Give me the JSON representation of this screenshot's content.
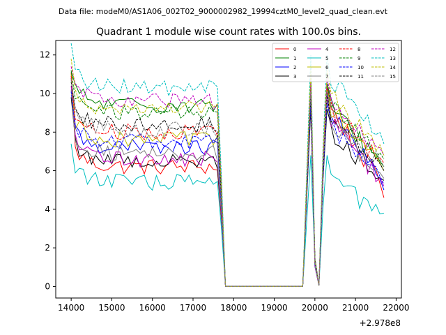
{
  "header": {
    "data_file": "Data file: modeM0/AS1A06_002T02_9000002982_19994cztM0_level2_quad_clean.evt"
  },
  "chart_data": {
    "type": "line",
    "title": "Quadrant 1 module wise count rates with 100.0s bins.",
    "xlabel": "",
    "ylabel": "",
    "x_offset_label": "+2.978e8",
    "xlim": [
      13620,
      22130
    ],
    "ylim": [
      -0.6,
      12.75
    ],
    "xticks": [
      14000,
      15000,
      16000,
      17000,
      18000,
      19000,
      20000,
      21000,
      22000
    ],
    "yticks": [
      0,
      2,
      4,
      6,
      8,
      10,
      12
    ],
    "legend_position": "top-right",
    "x_start": 14000,
    "x_step": 100,
    "x_end": 21700,
    "gap": {
      "drop_start": 17700,
      "zero_from": 17800,
      "zero_to": 19700
    },
    "series": [
      {
        "name": "0",
        "color": "#ff0000",
        "dash": false,
        "base": 6.2,
        "peak": 10.5,
        "end": 4.6
      },
      {
        "name": "1",
        "color": "#008000",
        "dash": false,
        "base": 9.4,
        "peak": 10.5,
        "end": 6.2
      },
      {
        "name": "2",
        "color": "#0000ff",
        "dash": false,
        "base": 7.2,
        "peak": 10.2,
        "end": 5.0
      },
      {
        "name": "3",
        "color": "#000000",
        "dash": false,
        "base": 6.5,
        "peak": 9.2,
        "end": 5.5
      },
      {
        "name": "4",
        "color": "#bf00bf",
        "dash": false,
        "base": 6.6,
        "peak": 9.8,
        "end": 5.2
      },
      {
        "name": "5",
        "color": "#00bfbf",
        "dash": false,
        "base": 5.4,
        "peak": 6.8,
        "end": 3.8
      },
      {
        "name": "6",
        "color": "#bfbf00",
        "dash": false,
        "base": 7.6,
        "peak": 10.4,
        "end": 6.0
      },
      {
        "name": "7",
        "color": "#808080",
        "dash": false,
        "base": 6.9,
        "peak": 9.6,
        "end": 5.6
      },
      {
        "name": "8",
        "color": "#ff0000",
        "dash": true,
        "base": 8.0,
        "peak": 10.3,
        "end": 6.4
      },
      {
        "name": "9",
        "color": "#008000",
        "dash": true,
        "base": 9.0,
        "peak": 10.6,
        "end": 6.6
      },
      {
        "name": "10",
        "color": "#0000ff",
        "dash": true,
        "base": 7.5,
        "peak": 9.5,
        "end": 5.3
      },
      {
        "name": "11",
        "color": "#000000",
        "dash": true,
        "base": 8.4,
        "peak": 10.0,
        "end": 6.0
      },
      {
        "name": "12",
        "color": "#bf00bf",
        "dash": true,
        "base": 9.6,
        "peak": 10.8,
        "end": 6.8
      },
      {
        "name": "13",
        "color": "#00bfbf",
        "dash": true,
        "base": 10.3,
        "peak": 12.0,
        "end": 7.4
      },
      {
        "name": "14",
        "color": "#bfbf00",
        "dash": true,
        "base": 9.2,
        "peak": 11.2,
        "end": 6.8
      },
      {
        "name": "15",
        "color": "#808080",
        "dash": true,
        "base": 8.1,
        "peak": 10.1,
        "end": 6.2
      }
    ]
  }
}
